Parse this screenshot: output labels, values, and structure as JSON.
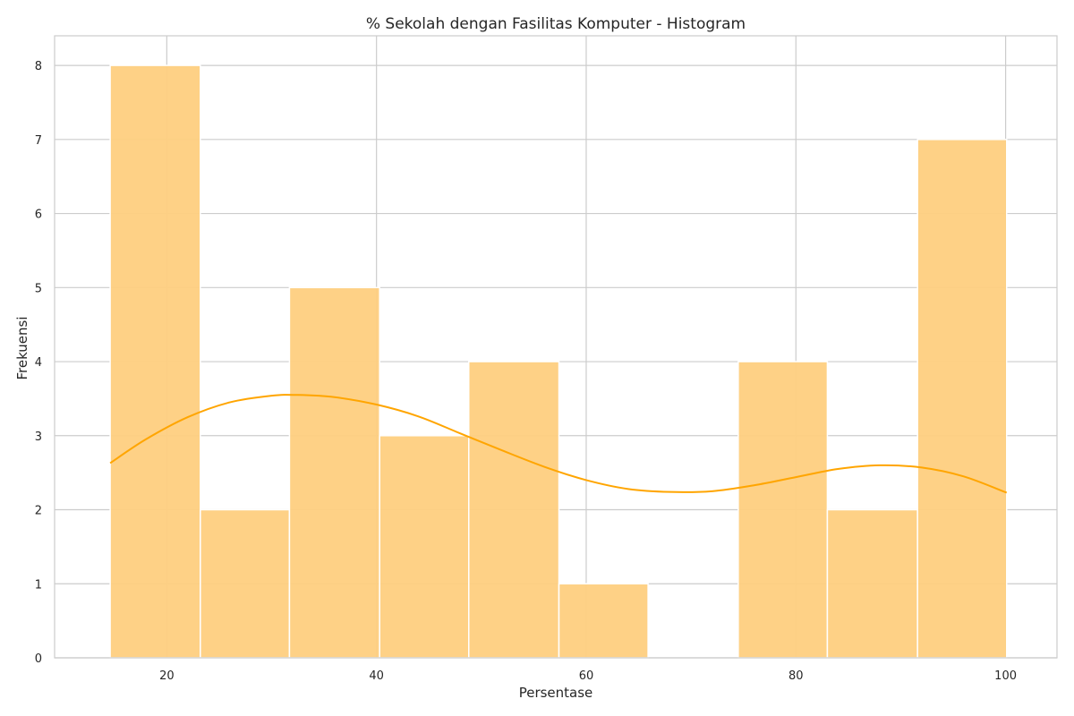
{
  "chart_data": {
    "type": "bar",
    "title": "% Sekolah dengan Fasilitas Komputer - Histogram",
    "xlabel": "Persentase",
    "ylabel": "Frekuensi",
    "xlim": [
      9.3,
      104.9
    ],
    "ylim": [
      0,
      8.4
    ],
    "xticks": [
      20,
      40,
      60,
      80,
      100
    ],
    "yticks": [
      0,
      1,
      2,
      3,
      4,
      5,
      6,
      7,
      8
    ],
    "grid": true,
    "bins": [
      {
        "x0": 14.6,
        "x1": 23.2,
        "count": 8
      },
      {
        "x0": 23.2,
        "x1": 31.7,
        "count": 2
      },
      {
        "x0": 31.7,
        "x1": 40.3,
        "count": 5
      },
      {
        "x0": 40.3,
        "x1": 48.8,
        "count": 3
      },
      {
        "x0": 48.8,
        "x1": 57.4,
        "count": 4
      },
      {
        "x0": 57.4,
        "x1": 65.9,
        "count": 1
      },
      {
        "x0": 65.9,
        "x1": 74.5,
        "count": 0
      },
      {
        "x0": 74.5,
        "x1": 83.0,
        "count": 4
      },
      {
        "x0": 83.0,
        "x1": 91.6,
        "count": 2
      },
      {
        "x0": 91.6,
        "x1": 100.1,
        "count": 7
      }
    ],
    "kde": {
      "x": [
        14.6,
        18,
        22,
        26,
        30,
        32.5,
        36,
        40,
        44,
        48,
        52,
        56,
        60,
        64,
        68,
        72,
        76,
        80,
        84,
        88,
        92,
        96,
        100.1
      ],
      "y": [
        2.63,
        2.95,
        3.25,
        3.45,
        3.54,
        3.55,
        3.52,
        3.42,
        3.26,
        3.03,
        2.8,
        2.58,
        2.4,
        2.28,
        2.24,
        2.25,
        2.33,
        2.44,
        2.55,
        2.6,
        2.57,
        2.45,
        2.23
      ]
    },
    "colors": {
      "bar_fill": "#fecf80",
      "bar_edge": "#ffffff",
      "kde_line": "#ffa500",
      "grid": "#cccccc",
      "axes_frame": "#cccccc"
    }
  }
}
